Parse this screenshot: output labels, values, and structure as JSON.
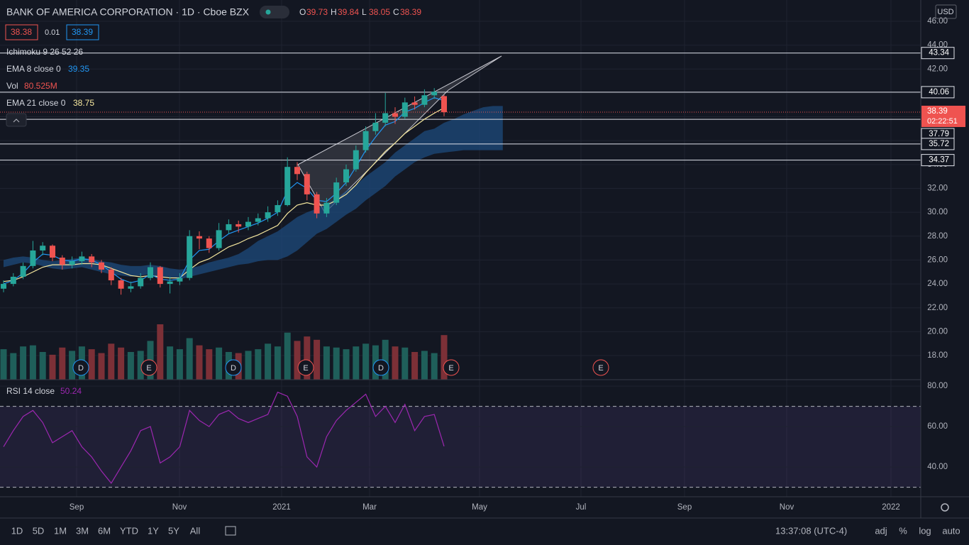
{
  "header": {
    "symbol": "BANK OF AMERICA CORPORATION · 1D · Cboe BZX",
    "ohlc_labels": [
      "O",
      "H",
      "L",
      "C"
    ],
    "bid": "38.38",
    "spread": "0.01",
    "ask": "38.39",
    "currency": "USD",
    "countdown": "02:22:51"
  },
  "legend": {
    "ichimoku": "Ichimoku 9 26 52 26",
    "ema8": "EMA 8 close 0",
    "vol": "Vol",
    "vol_value": "80.525M",
    "ema21": "EMA 21 close 0",
    "rsi": "RSI 14 close"
  },
  "toolbar": {
    "ranges": [
      "1D",
      "5D",
      "1M",
      "3M",
      "6M",
      "YTD",
      "1Y",
      "5Y",
      "All"
    ],
    "time": "13:37:08 (UTC-4)",
    "options": [
      "adj",
      "%",
      "log",
      "auto"
    ]
  },
  "events": [
    "D",
    "E",
    "D",
    "E",
    "D",
    "E",
    "E"
  ],
  "chart_data": {
    "type": "candlestick",
    "xticks": [
      "Sep",
      "Nov",
      "2021",
      "Mar",
      "May",
      "Jul",
      "Sep",
      "Nov",
      "2022"
    ],
    "open": [
      23.6,
      24.0,
      24.6,
      25.5,
      26.8,
      27.2,
      26.2,
      25.6,
      25.9,
      26.3,
      25.8,
      25.2,
      24.3,
      23.6,
      23.8,
      24.5,
      25.4,
      24.0,
      24.2,
      24.5,
      28.0,
      27.8,
      27.0,
      28.5,
      29.0,
      28.8,
      29.2,
      29.5,
      30.0,
      30.6,
      33.8,
      33.2,
      31.5,
      29.9,
      30.8,
      32.5,
      33.6,
      35.2,
      36.8,
      37.5,
      38.3,
      38.0,
      39.2,
      39.0,
      39.8,
      39.73
    ],
    "high": [
      24.3,
      24.9,
      25.8,
      27.6,
      27.5,
      27.3,
      26.4,
      26.3,
      26.7,
      26.5,
      26.0,
      25.4,
      24.5,
      24.2,
      24.9,
      25.8,
      25.5,
      24.6,
      24.9,
      28.5,
      28.4,
      28.0,
      29.1,
      29.4,
      29.3,
      29.6,
      29.9,
      30.5,
      31.0,
      34.6,
      34.2,
      33.4,
      31.7,
      31.2,
      32.9,
      34.0,
      35.6,
      37.2,
      38.3,
      40.0,
      38.8,
      39.6,
      39.7,
      40.3,
      40.4,
      39.84
    ],
    "low": [
      23.3,
      23.8,
      24.4,
      25.3,
      26.4,
      25.9,
      25.2,
      25.3,
      25.6,
      25.4,
      24.9,
      23.9,
      23.1,
      23.3,
      23.6,
      24.3,
      23.7,
      23.2,
      23.9,
      24.3,
      26.9,
      26.6,
      26.8,
      28.2,
      28.3,
      28.5,
      28.9,
      29.2,
      29.7,
      30.5,
      32.7,
      31.0,
      29.5,
      29.6,
      30.6,
      32.2,
      33.4,
      35.0,
      36.5,
      37.2,
      37.4,
      37.8,
      38.6,
      38.8,
      39.5,
      38.05
    ],
    "close": [
      24.0,
      24.6,
      25.5,
      26.8,
      27.2,
      26.2,
      25.6,
      25.9,
      26.3,
      25.8,
      25.2,
      24.3,
      23.6,
      23.8,
      24.5,
      25.4,
      24.0,
      24.2,
      24.5,
      28.0,
      27.8,
      27.0,
      28.5,
      29.0,
      28.8,
      29.2,
      29.5,
      30.0,
      30.6,
      33.8,
      33.2,
      31.5,
      29.9,
      30.8,
      32.5,
      33.6,
      35.2,
      36.8,
      37.5,
      38.3,
      38.0,
      39.2,
      39.0,
      39.8,
      40.1,
      38.39
    ],
    "ema8": [
      24.0,
      24.3,
      24.9,
      25.8,
      26.5,
      26.4,
      26.0,
      25.9,
      26.1,
      26.0,
      25.6,
      25.0,
      24.4,
      24.1,
      24.3,
      24.8,
      24.4,
      24.3,
      24.4,
      26.0,
      26.8,
      26.9,
      27.6,
      28.2,
      28.5,
      28.8,
      29.1,
      29.5,
      30.0,
      31.8,
      32.5,
      32.0,
      31.0,
      30.9,
      31.6,
      32.5,
      33.8,
      35.2,
      36.3,
      37.3,
      37.6,
      38.4,
      38.7,
      39.2,
      39.6,
      39.35
    ],
    "ema21": [
      24.2,
      24.3,
      24.6,
      25.0,
      25.4,
      25.6,
      25.6,
      25.6,
      25.7,
      25.7,
      25.6,
      25.3,
      25.0,
      24.7,
      24.6,
      24.7,
      24.6,
      24.5,
      24.5,
      25.2,
      25.8,
      26.1,
      26.6,
      27.1,
      27.4,
      27.8,
      28.1,
      28.5,
      28.9,
      29.9,
      30.6,
      30.8,
      30.6,
      30.6,
      31.0,
      31.5,
      32.3,
      33.3,
      34.2,
      35.1,
      35.8,
      36.6,
      37.2,
      37.8,
      38.3,
      38.75
    ],
    "cloud_upper": [
      26.0,
      26.2,
      26.3,
      26.2,
      26.0,
      25.9,
      26.0,
      26.1,
      26.2,
      26.1,
      25.9,
      25.8,
      25.6,
      25.5,
      25.5,
      25.6,
      25.5,
      25.3,
      25.2,
      25.3,
      25.5,
      25.8,
      26.0,
      26.2,
      26.5,
      27.0,
      27.6,
      28.0,
      28.4,
      29.0,
      29.6,
      30.0,
      30.3,
      30.7,
      31.2,
      31.8,
      32.3,
      33.0,
      33.6,
      34.2,
      35.0,
      35.6,
      36.2,
      36.8,
      37.0,
      37.5,
      37.8,
      38.2,
      38.5,
      38.8,
      38.9,
      38.9
    ],
    "cloud_lower": [
      25.4,
      25.6,
      25.8,
      25.7,
      25.5,
      25.3,
      25.2,
      25.3,
      25.4,
      25.2,
      25.0,
      24.8,
      24.7,
      24.6,
      24.7,
      24.8,
      24.6,
      24.5,
      24.4,
      24.6,
      24.8,
      25.0,
      25.2,
      25.4,
      25.6,
      25.7,
      25.9,
      26.0,
      26.0,
      26.3,
      26.8,
      27.5,
      28.2,
      28.6,
      29.2,
      29.8,
      30.3,
      31.0,
      31.6,
      32.2,
      33.0,
      33.6,
      34.2,
      34.6,
      34.9,
      35.0,
      35.1,
      35.2,
      35.2,
      35.2,
      35.2,
      35.2
    ],
    "volume": [
      55,
      48,
      60,
      62,
      50,
      45,
      58,
      52,
      60,
      55,
      48,
      65,
      58,
      50,
      52,
      70,
      100,
      60,
      55,
      75,
      62,
      55,
      58,
      50,
      48,
      52,
      55,
      65,
      60,
      85,
      70,
      78,
      72,
      60,
      58,
      55,
      60,
      65,
      62,
      72,
      60,
      58,
      50,
      52,
      48,
      80.525
    ],
    "rsi": [
      50,
      58,
      65,
      68,
      62,
      52,
      55,
      58,
      50,
      45,
      38,
      32,
      40,
      48,
      58,
      60,
      42,
      45,
      50,
      68,
      63,
      60,
      66,
      68,
      64,
      62,
      64,
      66,
      77,
      75,
      65,
      45,
      40,
      55,
      63,
      68,
      72,
      76,
      65,
      70,
      62,
      71,
      58,
      65,
      66,
      50.24
    ],
    "levels": [
      43.34,
      40.06,
      37.79,
      35.72,
      34.37
    ],
    "ylim": [
      15.98,
      47.78
    ],
    "yticks": [
      {
        "value": 18,
        "label": "18.00"
      },
      {
        "value": 20,
        "label": "20.00"
      },
      {
        "value": 22,
        "label": "22.00"
      },
      {
        "value": 24,
        "label": "24.00"
      },
      {
        "value": 26,
        "label": "26.00"
      },
      {
        "value": 28,
        "label": "28.00"
      },
      {
        "value": 30,
        "label": "30.00"
      },
      {
        "value": 32,
        "label": "32.00"
      },
      {
        "value": 34,
        "label": "34.00"
      },
      {
        "value": 36,
        "label": "36.00"
      },
      {
        "value": 38,
        "label": "38.00"
      },
      {
        "value": 40,
        "label": "40.00"
      },
      {
        "value": 42,
        "label": "42.00"
      },
      {
        "value": 44,
        "label": "44.00"
      },
      {
        "value": 46,
        "label": "46.00"
      }
    ],
    "rsi_ylim": [
      25.3,
      83.2
    ],
    "rsi_yticks": [
      {
        "value": 40,
        "label": "40.00"
      },
      {
        "value": 60,
        "label": "60.00"
      },
      {
        "value": 80,
        "label": "80.00"
      }
    ],
    "rsi_bands": [
      70,
      30
    ],
    "colors": {
      "up": "#26a69a",
      "down": "#ef5350",
      "ema8": "#2196f3",
      "ema21": "#f5e79e",
      "cloud": "#1d4b7c",
      "rsi": "#9c27b0"
    }
  }
}
